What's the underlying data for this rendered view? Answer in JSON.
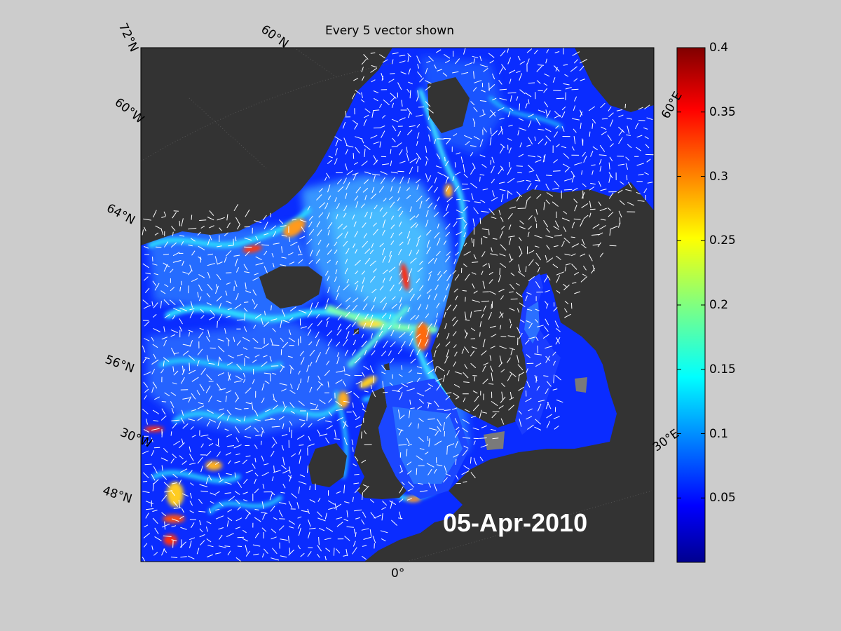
{
  "title": "Every 5 vector shown",
  "date": "05-Apr-2010",
  "graticule_labels": {
    "lat_72": "72°N",
    "lat_68": "60°N",
    "lon_60w": "60°W",
    "lat_64": "64°N",
    "lat_56": "56°N",
    "lon_30w": "30°W",
    "lat_48": "48°N",
    "lon_0": "0°",
    "lon_60e": "60°E",
    "lon_30e": "30°E"
  },
  "colorbar": {
    "ticks": [
      "0.4",
      "0.35",
      "0.3",
      "0.25",
      "0.2",
      "0.15",
      "0.1",
      "0.05"
    ],
    "tick_values": [
      0.4,
      0.35,
      0.3,
      0.25,
      0.2,
      0.15,
      0.1,
      0.05
    ],
    "range": [
      0,
      0.4
    ],
    "colormap": "jet"
  },
  "colors": {
    "background": "#cccccc",
    "land": "#333333",
    "ice": "#808080",
    "ocean_low": "#0033ff",
    "vectors": "#ffffff"
  }
}
